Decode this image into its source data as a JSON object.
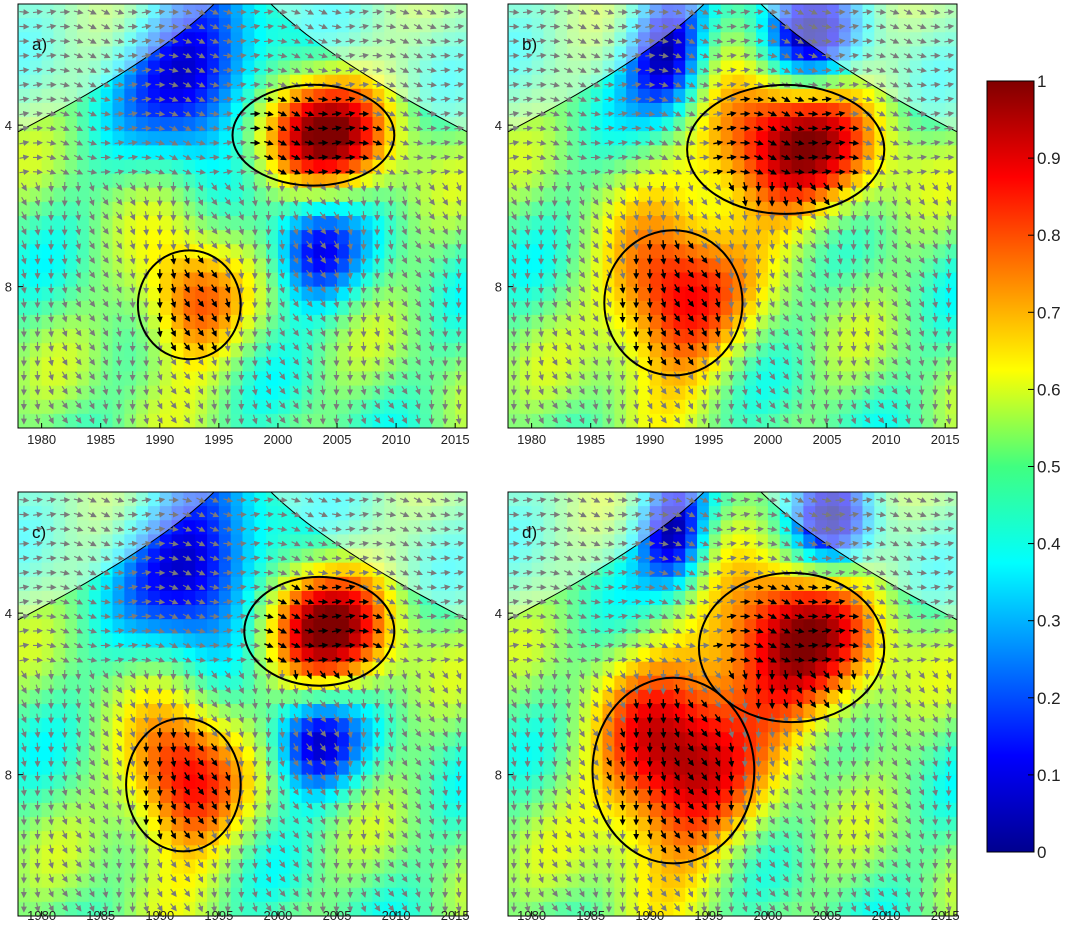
{
  "chart_data": {
    "type": "heatmap",
    "subtype": "wavelet coherence",
    "colorbar": {
      "min": 0,
      "max": 1,
      "ticks": [
        "0",
        "0.1",
        "0.2",
        "0.3",
        "0.4",
        "0.5",
        "0.6",
        "0.7",
        "0.8",
        "0.9",
        "1"
      ],
      "colormap": "jet"
    },
    "panels": [
      {
        "label": "a)",
        "xlim": [
          1978,
          2016
        ],
        "xticks": [
          "1980",
          "1985",
          "1990",
          "1995",
          "2000",
          "2005",
          "2010",
          "2015"
        ],
        "ylim": [
          1,
          11.5
        ],
        "yticks": [
          "4",
          "8"
        ],
        "y_reversed": true,
        "coi_apex_year": 1997,
        "high_coherence_regions": [
          {
            "x": [
              1997,
              2009
            ],
            "y": [
              3.2,
              5.3
            ],
            "level": 0.95
          },
          {
            "x": [
              1989,
              1996
            ],
            "y": [
              7.3,
              9.6
            ],
            "level": 0.8
          }
        ],
        "low_coherence_regions": [
          {
            "x": [
              1988,
              1999
            ],
            "y": [
              1,
              4.4
            ],
            "level": 0.05
          },
          {
            "x": [
              2000,
              2006
            ],
            "y": [
              6.2,
              8
            ],
            "level": 0.15
          }
        ]
      },
      {
        "label": "b)",
        "xlim": [
          1978,
          2016
        ],
        "xticks": [
          "1980",
          "1985",
          "1990",
          "1995",
          "2000",
          "2005",
          "2010",
          "2015"
        ],
        "ylim": [
          1,
          11.5
        ],
        "yticks": [
          "4",
          "8"
        ],
        "y_reversed": true,
        "coi_apex_year": 1997,
        "high_coherence_regions": [
          {
            "x": [
              1994,
              2009
            ],
            "y": [
              3.2,
              6.0
            ],
            "level": 0.95
          },
          {
            "x": [
              1987,
              1997
            ],
            "y": [
              6.8,
              10.0
            ],
            "level": 0.9
          }
        ],
        "low_coherence_regions": [
          {
            "x": [
              1989,
              1994
            ],
            "y": [
              1,
              3.5
            ],
            "level": 0.05
          },
          {
            "x": [
              2000,
              2007
            ],
            "y": [
              1,
              2.6
            ],
            "level": 0.1
          }
        ]
      },
      {
        "label": "c)",
        "xlim": [
          1978,
          2016
        ],
        "xticks": [
          "1980",
          "1985",
          "1990",
          "1995",
          "2000",
          "2005",
          "2010",
          "2015"
        ],
        "ylim": [
          1,
          11.5
        ],
        "yticks": [
          "4",
          "8"
        ],
        "y_reversed": true,
        "coi_apex_year": 1997,
        "high_coherence_regions": [
          {
            "x": [
              1998,
              2009
            ],
            "y": [
              3.3,
              5.6
            ],
            "level": 0.95
          },
          {
            "x": [
              1988,
              1996
            ],
            "y": [
              6.8,
              9.7
            ],
            "level": 0.9
          }
        ],
        "low_coherence_regions": [
          {
            "x": [
              1988,
              1999
            ],
            "y": [
              1,
              4.6
            ],
            "level": 0.05
          },
          {
            "x": [
              2000,
              2006
            ],
            "y": [
              6.4,
              8.0
            ],
            "level": 0.1
          }
        ]
      },
      {
        "label": "d)",
        "xlim": [
          1978,
          2016
        ],
        "xticks": [
          "1980",
          "1985",
          "1990",
          "1995",
          "2000",
          "2005",
          "2010",
          "2015"
        ],
        "ylim": [
          1,
          11.5
        ],
        "yticks": [
          "4",
          "8"
        ],
        "y_reversed": true,
        "coi_apex_year": 1997,
        "high_coherence_regions": [
          {
            "x": [
              1995,
              2009
            ],
            "y": [
              3.2,
              6.5
            ],
            "level": 0.95
          },
          {
            "x": [
              1986,
              1998
            ],
            "y": [
              5.8,
              10.0
            ],
            "level": 0.95
          }
        ],
        "low_coherence_regions": [
          {
            "x": [
              1990,
              1994
            ],
            "y": [
              1,
              3.0
            ],
            "level": 0.05
          },
          {
            "x": [
              2003,
              2008
            ],
            "y": [
              1,
              2.5
            ],
            "level": 0.1
          }
        ]
      }
    ]
  }
}
